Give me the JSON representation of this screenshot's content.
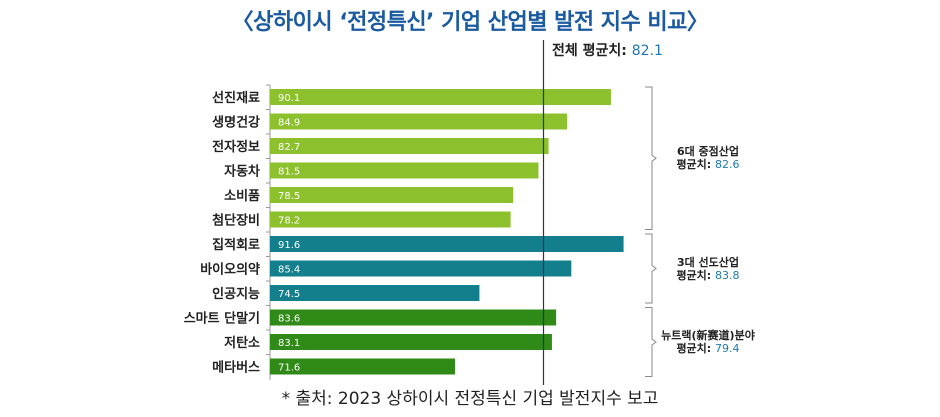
{
  "chart_data": {
    "type": "bar",
    "orientation": "horizontal",
    "title": "〈상하이시 ‘전정특신’ 기업 산업별 발전 지수 비교〉",
    "categories": [
      "선진재료",
      "생명건강",
      "전자정보",
      "자동차",
      "소비품",
      "첨단장비",
      "집적회로",
      "바이오의약",
      "인공지능",
      "스마트 단말기",
      "저탄소",
      "메타버스"
    ],
    "values": [
      90.1,
      84.9,
      82.7,
      81.5,
      78.5,
      78.2,
      91.6,
      85.4,
      74.5,
      83.6,
      83.1,
      71.6
    ],
    "value_labels": [
      "90.1",
      "84.9",
      "82.7",
      "81.5",
      "78.5",
      "78.2",
      "91.6",
      "85.4",
      "74.5",
      "83.6",
      "83.1",
      "71.6"
    ],
    "groups": [
      {
        "name": "6대 중점산업",
        "avg_label": "평균치:",
        "avg": "82.6",
        "start": 0,
        "end": 5,
        "color": "#8cc12d"
      },
      {
        "name": "3대 선도산업",
        "avg_label": "평균치:",
        "avg": "83.8",
        "start": 6,
        "end": 8,
        "color": "#137f8d"
      },
      {
        "name": "뉴트랙(新赛道)분야",
        "avg_label": "평균치:",
        "avg": "79.4",
        "start": 9,
        "end": 11,
        "color": "#2f8a17"
      }
    ],
    "reference_line": {
      "label": "전체 평균치:",
      "value": 82.1,
      "value_label": "82.1"
    },
    "source": "* 출처: 2023 상하이시 전정특신 기업 발전지수 보고"
  }
}
